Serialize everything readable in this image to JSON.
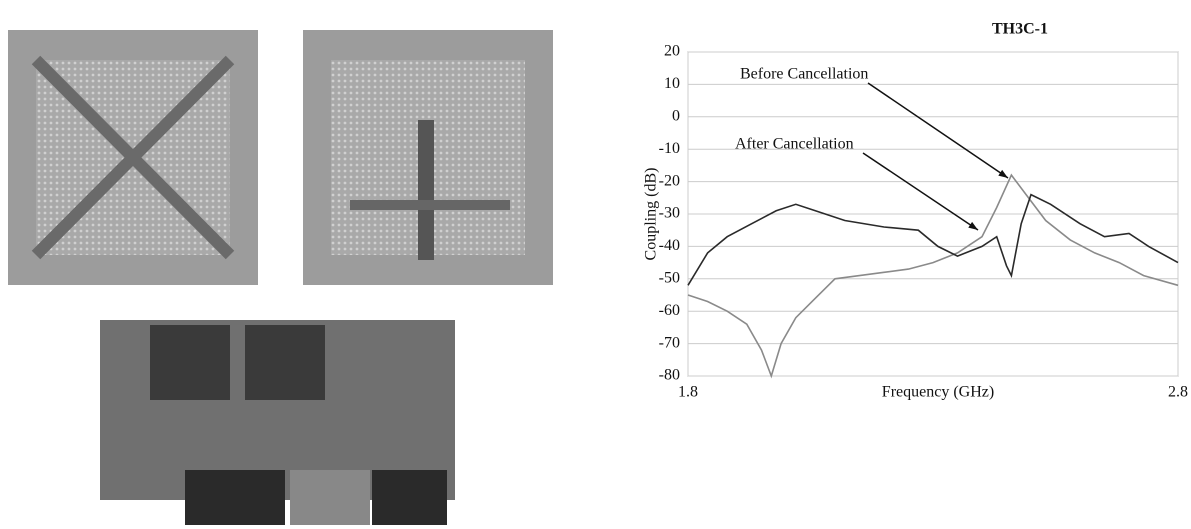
{
  "chart_data": {
    "type": "line",
    "title": "TH3C-1",
    "x_label": "Frequency (GHz)",
    "y_label": "Coupling (dB)",
    "xlim": [
      1.8,
      2.8
    ],
    "xticks": [
      1.8,
      2.8
    ],
    "ylim": [
      -80,
      20
    ],
    "yticks": [
      -80,
      -70,
      -60,
      -50,
      -40,
      -30,
      -20,
      -10,
      0,
      10,
      20
    ],
    "grid": true,
    "annotations": [
      "Before Cancellation",
      "After Cancellation"
    ],
    "series": [
      {
        "name": "Before Cancellation",
        "color": "#8a8a8a",
        "x": [
          1.8,
          1.84,
          1.88,
          1.92,
          1.95,
          1.97,
          1.99,
          2.02,
          2.06,
          2.1,
          2.15,
          2.2,
          2.25,
          2.3,
          2.35,
          2.4,
          2.43,
          2.46,
          2.49,
          2.53,
          2.58,
          2.63,
          2.68,
          2.73,
          2.8
        ],
        "values": [
          -55,
          -57,
          -60,
          -64,
          -72,
          -80,
          -70,
          -62,
          -56,
          -50,
          -49,
          -48,
          -47,
          -45,
          -42,
          -37,
          -28,
          -18,
          -24,
          -32,
          -38,
          -42,
          -45,
          -49,
          -52
        ]
      },
      {
        "name": "After Cancellation",
        "color": "#2a2a2a",
        "x": [
          1.8,
          1.84,
          1.88,
          1.93,
          1.98,
          2.02,
          2.06,
          2.12,
          2.2,
          2.27,
          2.31,
          2.35,
          2.4,
          2.43,
          2.45,
          2.46,
          2.48,
          2.5,
          2.54,
          2.6,
          2.65,
          2.7,
          2.74,
          2.8
        ],
        "values": [
          -52,
          -42,
          -37,
          -33,
          -29,
          -27,
          -29,
          -32,
          -34,
          -35,
          -40,
          -43,
          -40,
          -37,
          -46,
          -49,
          -33,
          -24,
          -27,
          -33,
          -37,
          -36,
          -40,
          -45
        ]
      }
    ]
  }
}
